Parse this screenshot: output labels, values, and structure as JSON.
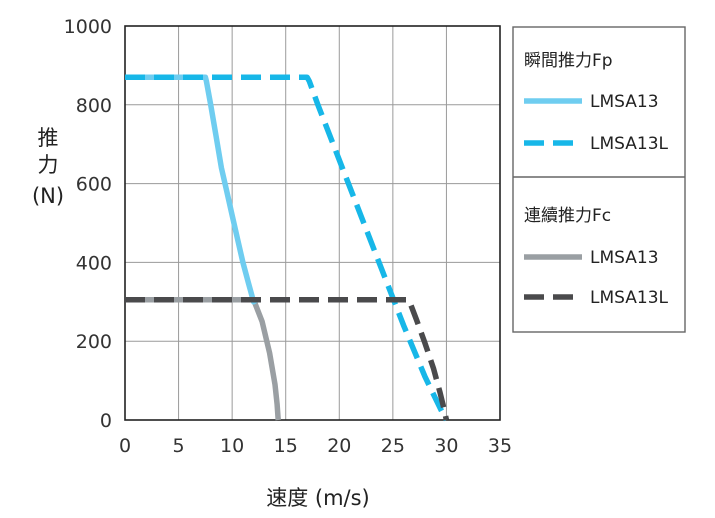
{
  "chart_data": {
    "type": "line",
    "xlabel": "速度 (m/s)",
    "ylabel": [
      "推",
      "力",
      "(N)"
    ],
    "xlim": [
      0,
      35
    ],
    "ylim": [
      0,
      1000
    ],
    "xticks": [
      "0",
      "5",
      "10",
      "15",
      "20",
      "25",
      "30",
      "35"
    ],
    "yticks": [
      "0",
      "200",
      "400",
      "600",
      "800",
      "1000"
    ],
    "grid": true,
    "legend_placement": "right",
    "legend_groups": [
      {
        "title": "瞬間推力Fp",
        "items": [
          0,
          1
        ]
      },
      {
        "title": "連續推力Fc",
        "items": [
          2,
          3
        ]
      }
    ],
    "series": [
      {
        "name": "LMSA13",
        "group": "瞬間推力Fp",
        "color": "#6fcdf0",
        "style": "solid",
        "x": [
          0,
          7.5,
          7.6,
          8,
          8.5,
          9,
          9.5,
          10,
          10.5,
          11,
          11.5,
          12,
          12.3
        ],
        "y": [
          870,
          870,
          860,
          800,
          720,
          640,
          580,
          520,
          460,
          400,
          350,
          300,
          305
        ]
      },
      {
        "name": "LMSA13L",
        "group": "瞬間推力Fp",
        "color": "#17b7e8",
        "style": "dashed",
        "x": [
          0,
          17,
          17.2,
          18,
          20,
          22,
          24,
          26,
          28,
          29.5,
          30
        ],
        "y": [
          870,
          870,
          860,
          800,
          660,
          520,
          380,
          240,
          110,
          25,
          0
        ]
      },
      {
        "name": "LMSA13",
        "group": "連續推力Fc",
        "color": "#9a9fa3",
        "style": "solid",
        "x": [
          0,
          12,
          12.8,
          13.5,
          14,
          14.2,
          14.3
        ],
        "y": [
          305,
          305,
          250,
          170,
          90,
          40,
          0
        ]
      },
      {
        "name": "LMSA13L",
        "group": "連續推力Fc",
        "color": "#4a4a4c",
        "style": "dashed",
        "x": [
          0,
          26.5,
          27.2,
          28,
          28.8,
          29.4,
          29.8,
          30
        ],
        "y": [
          305,
          305,
          255,
          195,
          130,
          70,
          25,
          0
        ]
      }
    ]
  }
}
